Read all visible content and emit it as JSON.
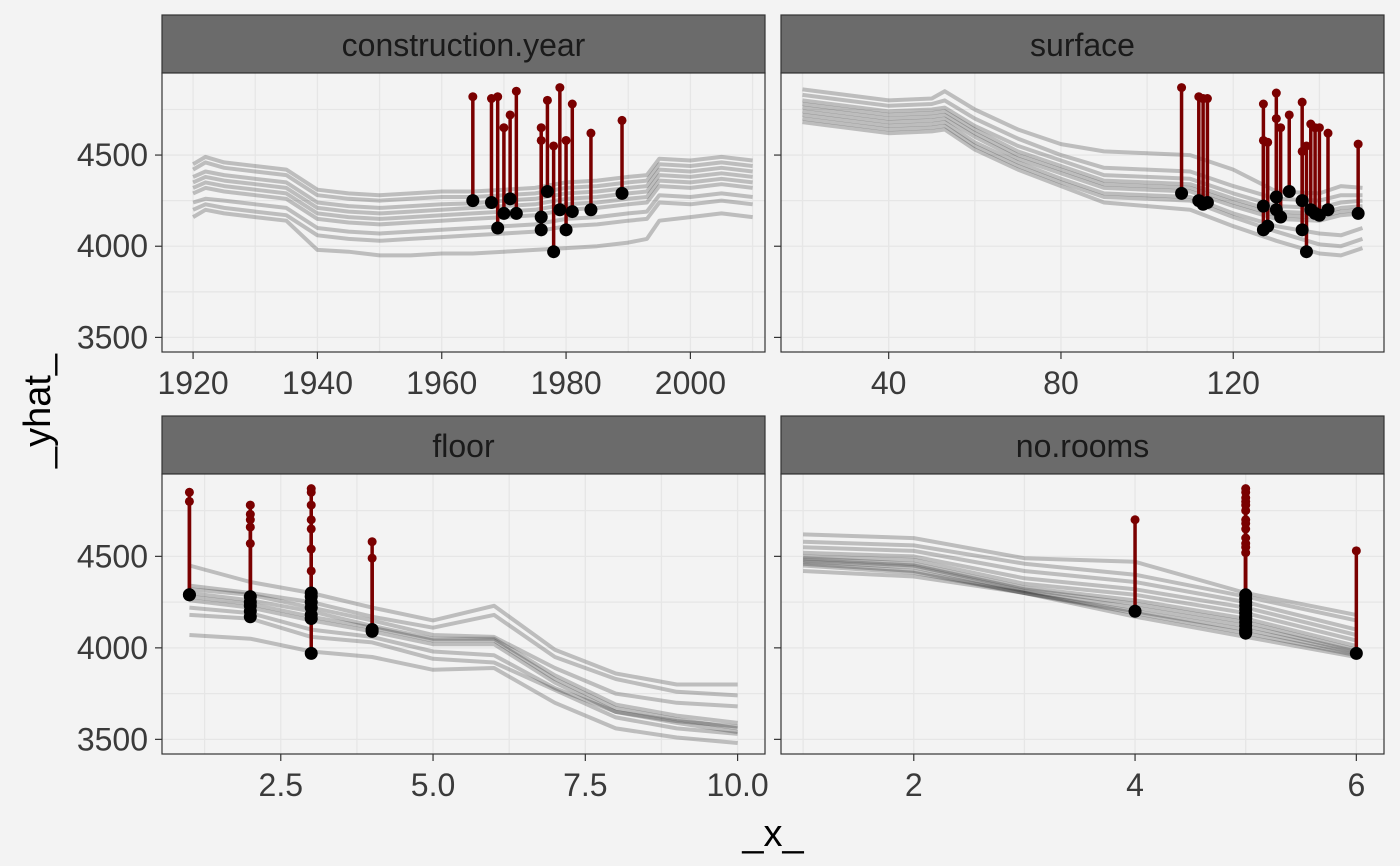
{
  "chart_data": {
    "type": "line",
    "xlabel": "_x_",
    "ylabel": "_yhat_",
    "colors": {
      "background": "#f3f3f3",
      "strip": "#6b6b6b",
      "strip_text": "#1a1a1a",
      "profile_line": "#000000",
      "residual": "#7a0000",
      "observation": "#000000",
      "grid": "#e6e6e6"
    },
    "panels": [
      {
        "name": "construction.year",
        "xlim": [
          1915,
          2012
        ],
        "ylim": [
          3420,
          4950
        ],
        "x_ticks": [
          1920,
          1940,
          1960,
          1980,
          2000
        ],
        "x_tick_labels": [
          "1920",
          "1940",
          "1960",
          "1980",
          "2000"
        ],
        "y_ticks": [
          3500,
          4000,
          4500
        ],
        "y_tick_labels": [
          "3500",
          "4000",
          "4500"
        ],
        "profile_x": [
          1920,
          1922,
          1925,
          1930,
          1935,
          1940,
          1945,
          1950,
          1955,
          1960,
          1965,
          1970,
          1975,
          1980,
          1985,
          1990,
          1993,
          1995,
          2000,
          2005,
          2010
        ],
        "profiles": [
          [
            4450,
            4490,
            4460,
            4440,
            4420,
            4310,
            4290,
            4280,
            4290,
            4300,
            4300,
            4310,
            4320,
            4350,
            4360,
            4380,
            4390,
            4480,
            4470,
            4490,
            4470
          ],
          [
            4420,
            4460,
            4430,
            4410,
            4390,
            4280,
            4260,
            4250,
            4260,
            4270,
            4270,
            4280,
            4290,
            4320,
            4330,
            4350,
            4360,
            4450,
            4440,
            4460,
            4440
          ],
          [
            4380,
            4410,
            4390,
            4370,
            4350,
            4240,
            4220,
            4210,
            4220,
            4230,
            4235,
            4250,
            4260,
            4290,
            4300,
            4320,
            4330,
            4420,
            4410,
            4430,
            4410
          ],
          [
            4350,
            4380,
            4360,
            4340,
            4320,
            4210,
            4190,
            4180,
            4190,
            4200,
            4210,
            4220,
            4230,
            4260,
            4270,
            4290,
            4300,
            4390,
            4380,
            4400,
            4380
          ],
          [
            4320,
            4350,
            4330,
            4310,
            4290,
            4180,
            4160,
            4150,
            4160,
            4170,
            4180,
            4190,
            4200,
            4230,
            4240,
            4260,
            4270,
            4360,
            4350,
            4370,
            4350
          ],
          [
            4290,
            4320,
            4300,
            4280,
            4260,
            4150,
            4130,
            4120,
            4130,
            4140,
            4150,
            4160,
            4170,
            4200,
            4210,
            4230,
            4240,
            4330,
            4320,
            4340,
            4320
          ],
          [
            4240,
            4260,
            4250,
            4230,
            4210,
            4100,
            4080,
            4070,
            4080,
            4090,
            4100,
            4110,
            4120,
            4150,
            4160,
            4180,
            4190,
            4280,
            4270,
            4290,
            4270
          ],
          [
            4200,
            4230,
            4210,
            4190,
            4170,
            4060,
            4040,
            4030,
            4040,
            4050,
            4060,
            4070,
            4080,
            4110,
            4120,
            4140,
            4150,
            4240,
            4230,
            4250,
            4230
          ],
          [
            4160,
            4200,
            4180,
            4160,
            4140,
            3980,
            3970,
            3950,
            3950,
            3960,
            3960,
            3970,
            3980,
            3990,
            4000,
            4020,
            4040,
            4140,
            4160,
            4180,
            4160
          ]
        ],
        "observations": [
          {
            "x": 1965,
            "y": 4250,
            "actual": 4820
          },
          {
            "x": 1968,
            "y": 4240,
            "actual": 4810
          },
          {
            "x": 1969,
            "y": 4100,
            "actual": 4820
          },
          {
            "x": 1970,
            "y": 4180,
            "actual": 4650
          },
          {
            "x": 1971,
            "y": 4260,
            "actual": 4720
          },
          {
            "x": 1972,
            "y": 4180,
            "actual": 4850
          },
          {
            "x": 1976,
            "y": 4090,
            "actual": 4650
          },
          {
            "x": 1976,
            "y": 4160,
            "actual": 4580
          },
          {
            "x": 1977,
            "y": 4300,
            "actual": 4800
          },
          {
            "x": 1978,
            "y": 3970,
            "actual": 4550
          },
          {
            "x": 1979,
            "y": 4200,
            "actual": 4870
          },
          {
            "x": 1980,
            "y": 4090,
            "actual": 4580
          },
          {
            "x": 1981,
            "y": 4190,
            "actual": 4780
          },
          {
            "x": 1984,
            "y": 4200,
            "actual": 4620
          },
          {
            "x": 1989,
            "y": 4290,
            "actual": 4690
          }
        ]
      },
      {
        "name": "surface",
        "xlim": [
          15,
          155
        ],
        "ylim": [
          3420,
          4950
        ],
        "x_ticks": [
          40,
          80,
          120
        ],
        "x_tick_labels": [
          "40",
          "80",
          "120"
        ],
        "y_ticks": [
          3500,
          4000,
          4500
        ],
        "y_tick_labels": [
          "",
          "",
          ""
        ],
        "profile_x": [
          20,
          30,
          40,
          50,
          53,
          60,
          70,
          80,
          90,
          100,
          110,
          120,
          130,
          140,
          145,
          150
        ],
        "profiles": [
          [
            4860,
            4830,
            4800,
            4810,
            4850,
            4750,
            4640,
            4560,
            4520,
            4510,
            4500,
            4420,
            4300,
            4290,
            4330,
            4320
          ],
          [
            4830,
            4800,
            4770,
            4780,
            4800,
            4700,
            4590,
            4500,
            4430,
            4420,
            4410,
            4330,
            4260,
            4250,
            4280,
            4280
          ],
          [
            4800,
            4770,
            4740,
            4750,
            4760,
            4660,
            4550,
            4470,
            4390,
            4380,
            4370,
            4290,
            4220,
            4210,
            4240,
            4250
          ],
          [
            4780,
            4750,
            4720,
            4730,
            4740,
            4640,
            4520,
            4440,
            4360,
            4350,
            4340,
            4260,
            4190,
            4180,
            4210,
            4220
          ],
          [
            4760,
            4730,
            4700,
            4710,
            4720,
            4620,
            4500,
            4420,
            4340,
            4330,
            4320,
            4240,
            4170,
            4160,
            4190,
            4200
          ],
          [
            4740,
            4710,
            4680,
            4690,
            4700,
            4600,
            4480,
            4400,
            4320,
            4310,
            4300,
            4220,
            4150,
            4140,
            4170,
            4180
          ],
          [
            4720,
            4690,
            4660,
            4670,
            4680,
            4570,
            4460,
            4370,
            4290,
            4280,
            4270,
            4180,
            4110,
            4070,
            4060,
            4100
          ],
          [
            4700,
            4670,
            4640,
            4650,
            4660,
            4550,
            4440,
            4350,
            4270,
            4260,
            4250,
            4160,
            4080,
            4010,
            4000,
            4040
          ],
          [
            4680,
            4650,
            4620,
            4630,
            4640,
            4530,
            4420,
            4330,
            4240,
            4220,
            4200,
            4110,
            4030,
            3960,
            3950,
            3990
          ]
        ],
        "observations": [
          {
            "x": 108,
            "y": 4290,
            "actual": 4870
          },
          {
            "x": 112,
            "y": 4250,
            "actual": 4820
          },
          {
            "x": 113,
            "y": 4230,
            "actual": 4810
          },
          {
            "x": 114,
            "y": 4240,
            "actual": 4810
          },
          {
            "x": 127,
            "y": 4220,
            "actual": 4780
          },
          {
            "x": 127,
            "y": 4090,
            "actual": 4580
          },
          {
            "x": 128,
            "y": 4110,
            "actual": 4570
          },
          {
            "x": 130,
            "y": 4270,
            "actual": 4840
          },
          {
            "x": 130,
            "y": 4200,
            "actual": 4700
          },
          {
            "x": 131,
            "y": 4160,
            "actual": 4650
          },
          {
            "x": 133,
            "y": 4300,
            "actual": 4720
          },
          {
            "x": 136,
            "y": 4250,
            "actual": 4790
          },
          {
            "x": 136,
            "y": 4090,
            "actual": 4520
          },
          {
            "x": 137,
            "y": 3970,
            "actual": 4550
          },
          {
            "x": 138,
            "y": 4200,
            "actual": 4670
          },
          {
            "x": 139,
            "y": 4180,
            "actual": 4650
          },
          {
            "x": 140,
            "y": 4170,
            "actual": 4650
          },
          {
            "x": 142,
            "y": 4200,
            "actual": 4620
          },
          {
            "x": 149,
            "y": 4180,
            "actual": 4560
          }
        ]
      },
      {
        "name": "floor",
        "xlim": [
          0.55,
          10.45
        ],
        "ylim": [
          3420,
          4950
        ],
        "x_ticks": [
          2.5,
          5.0,
          7.5,
          10.0
        ],
        "x_tick_labels": [
          "2.5",
          "5.0",
          "7.5",
          "10.0"
        ],
        "y_ticks": [
          3500,
          4000,
          4500
        ],
        "y_tick_labels": [
          "3500",
          "4000",
          "4500"
        ],
        "profile_x": [
          1,
          2,
          3,
          4,
          5,
          6,
          7,
          8,
          9,
          10
        ],
        "profiles": [
          [
            4450,
            4360,
            4300,
            4220,
            4150,
            4230,
            3990,
            3860,
            3800,
            3800
          ],
          [
            4340,
            4300,
            4250,
            4170,
            4110,
            4180,
            3950,
            3830,
            3760,
            3740
          ],
          [
            4320,
            4290,
            4220,
            4150,
            4070,
            4060,
            3890,
            3750,
            3700,
            3680
          ],
          [
            4300,
            4260,
            4200,
            4120,
            4050,
            4050,
            3850,
            3690,
            3630,
            3590
          ],
          [
            4280,
            4240,
            4170,
            4110,
            4040,
            4040,
            3830,
            3670,
            3610,
            3560
          ],
          [
            4260,
            4220,
            4150,
            4090,
            4020,
            4020,
            3810,
            3650,
            3590,
            3540
          ],
          [
            4220,
            4190,
            4100,
            4060,
            3980,
            3960,
            3780,
            3650,
            3600,
            3570
          ],
          [
            4180,
            4160,
            4060,
            4030,
            3940,
            3920,
            3770,
            3620,
            3560,
            3530
          ],
          [
            4070,
            4050,
            3980,
            3950,
            3880,
            3890,
            3700,
            3560,
            3510,
            3480
          ]
        ],
        "observations": [
          {
            "x": 1,
            "y": 4290,
            "actual": 4850
          },
          {
            "x": 1,
            "y": 4290,
            "actual": 4800
          },
          {
            "x": 2,
            "y": 4280,
            "actual": 4780
          },
          {
            "x": 2,
            "y": 4250,
            "actual": 4730
          },
          {
            "x": 2,
            "y": 4200,
            "actual": 4700
          },
          {
            "x": 2,
            "y": 4170,
            "actual": 4660
          },
          {
            "x": 2,
            "y": 4230,
            "actual": 4570
          },
          {
            "x": 3,
            "y": 4300,
            "actual": 4870
          },
          {
            "x": 3,
            "y": 4280,
            "actual": 4850
          },
          {
            "x": 3,
            "y": 4250,
            "actual": 4780
          },
          {
            "x": 3,
            "y": 4220,
            "actual": 4700
          },
          {
            "x": 3,
            "y": 4180,
            "actual": 4650
          },
          {
            "x": 3,
            "y": 4160,
            "actual": 4540
          },
          {
            "x": 3,
            "y": 3970,
            "actual": 4420
          },
          {
            "x": 4,
            "y": 4090,
            "actual": 4580
          },
          {
            "x": 4,
            "y": 4100,
            "actual": 4490
          }
        ]
      },
      {
        "name": "no.rooms",
        "xlim": [
          0.8,
          6.25
        ],
        "ylim": [
          3420,
          4950
        ],
        "x_ticks": [
          2,
          4,
          6
        ],
        "x_tick_labels": [
          "2",
          "4",
          "6"
        ],
        "y_ticks": [
          3500,
          4000,
          4500
        ],
        "y_tick_labels": [
          "",
          "",
          ""
        ],
        "profile_x": [
          1,
          2,
          3,
          4,
          5,
          6
        ],
        "profiles": [
          [
            4620,
            4600,
            4490,
            4470,
            4300,
            4180
          ],
          [
            4580,
            4560,
            4460,
            4400,
            4280,
            4150
          ],
          [
            4550,
            4530,
            4420,
            4360,
            4250,
            4100
          ],
          [
            4520,
            4500,
            4380,
            4320,
            4220,
            4070
          ],
          [
            4500,
            4480,
            4350,
            4290,
            4190,
            4040
          ],
          [
            4490,
            4460,
            4330,
            4260,
            4160,
            4010
          ],
          [
            4480,
            4450,
            4320,
            4240,
            4140,
            3990
          ],
          [
            4470,
            4440,
            4310,
            4220,
            4120,
            3980
          ],
          [
            4460,
            4420,
            4300,
            4200,
            4100,
            3970
          ],
          [
            4450,
            4410,
            4300,
            4190,
            4080,
            3960
          ],
          [
            4420,
            4390,
            4300,
            4170,
            4060,
            3950
          ]
        ],
        "observations": [
          {
            "x": 4,
            "y": 4200,
            "actual": 4700
          },
          {
            "x": 5,
            "y": 4290,
            "actual": 4870
          },
          {
            "x": 5,
            "y": 4270,
            "actual": 4850
          },
          {
            "x": 5,
            "y": 4250,
            "actual": 4820
          },
          {
            "x": 5,
            "y": 4230,
            "actual": 4800
          },
          {
            "x": 5,
            "y": 4210,
            "actual": 4780
          },
          {
            "x": 5,
            "y": 4190,
            "actual": 4750
          },
          {
            "x": 5,
            "y": 4170,
            "actual": 4700
          },
          {
            "x": 5,
            "y": 4160,
            "actual": 4680
          },
          {
            "x": 5,
            "y": 4140,
            "actual": 4650
          },
          {
            "x": 5,
            "y": 4120,
            "actual": 4600
          },
          {
            "x": 5,
            "y": 4100,
            "actual": 4570
          },
          {
            "x": 5,
            "y": 4090,
            "actual": 4550
          },
          {
            "x": 5,
            "y": 4080,
            "actual": 4520
          },
          {
            "x": 6,
            "y": 3970,
            "actual": 4530
          }
        ]
      }
    ]
  }
}
